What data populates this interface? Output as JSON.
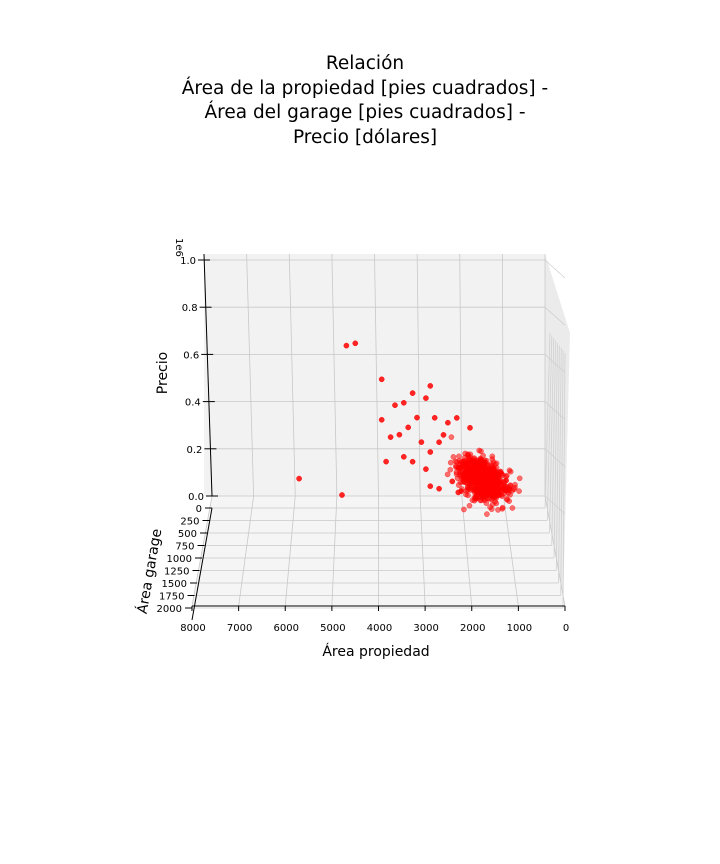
{
  "chart_data": {
    "type": "scatter",
    "title_lines": [
      "Relación",
      "Área de la propiedad [pies cuadrados] -",
      "Área del garage [pies cuadrados] -",
      "Precio [dólares]"
    ],
    "xlabel": "Área propiedad",
    "ylabel": "Área garage",
    "zlabel": "Precio",
    "z_offset_text": "1e6",
    "x_ticks": [
      "8000",
      "7000",
      "6000",
      "5000",
      "4000",
      "3000",
      "2000",
      "1000",
      "0"
    ],
    "y_ticks": [
      "0",
      "250",
      "500",
      "750",
      "1000",
      "1250",
      "1500",
      "1750",
      "2000"
    ],
    "z_ticks": [
      "0.0",
      "0.2",
      "0.4",
      "0.6",
      "0.8",
      "1.0"
    ],
    "xlim": [
      0,
      8000
    ],
    "ylim": [
      0,
      2000
    ],
    "zlim": [
      0,
      1000000
    ],
    "grid": true,
    "marker_color": "#ff0000",
    "points": [
      {
        "x": 4500,
        "y": 0,
        "z": 610000
      },
      {
        "x": 4300,
        "y": 0,
        "z": 620000
      },
      {
        "x": 3700,
        "y": 0,
        "z": 475000
      },
      {
        "x": 3000,
        "y": 0,
        "z": 420000
      },
      {
        "x": 2600,
        "y": 0,
        "z": 450000
      },
      {
        "x": 2700,
        "y": 0,
        "z": 400000
      },
      {
        "x": 3400,
        "y": 0,
        "z": 370000
      },
      {
        "x": 3200,
        "y": 0,
        "z": 380000
      },
      {
        "x": 3700,
        "y": 0,
        "z": 310000
      },
      {
        "x": 4600,
        "y": 0,
        "z": 4000
      },
      {
        "x": 5600,
        "y": 400,
        "z": 160000
      },
      {
        "x": 1000,
        "y": 600,
        "z": 200000
      },
      {
        "x": 2200,
        "y": 0,
        "z": 300000
      },
      {
        "x": 2900,
        "y": 0,
        "z": 320000
      },
      {
        "x": 3100,
        "y": 0,
        "z": 280000
      },
      {
        "x": 2500,
        "y": 0,
        "z": 320000
      },
      {
        "x": 2000,
        "y": 0,
        "z": 320000
      },
      {
        "x": 1700,
        "y": 0,
        "z": 280000
      },
      {
        "x": 3500,
        "y": 0,
        "z": 240000
      },
      {
        "x": 3300,
        "y": 0,
        "z": 250000
      },
      {
        "x": 3600,
        "y": 0,
        "z": 140000
      },
      {
        "x": 3200,
        "y": 0,
        "z": 160000
      },
      {
        "x": 2800,
        "y": 0,
        "z": 220000
      },
      {
        "x": 2400,
        "y": 0,
        "z": 220000
      },
      {
        "x": 2600,
        "y": 0,
        "z": 180000
      },
      {
        "x": 2300,
        "y": 0,
        "z": 250000
      },
      {
        "x": 3000,
        "y": 0,
        "z": 140000
      },
      {
        "x": 2700,
        "y": 0,
        "z": 110000
      },
      {
        "x": 2100,
        "y": 0,
        "z": 60000
      },
      {
        "x": 2600,
        "y": 0,
        "z": 40000
      },
      {
        "x": 1500,
        "y": 0,
        "z": 10000
      },
      {
        "x": 1900,
        "y": 0,
        "z": 20000
      },
      {
        "x": 1100,
        "y": 0,
        "z": 20000
      },
      {
        "x": 1400,
        "y": 0,
        "z": 5000
      },
      {
        "x": 1800,
        "y": 200,
        "z": 120000
      },
      {
        "x": 1200,
        "y": 150,
        "z": 100000
      },
      {
        "x": 2400,
        "y": 0,
        "z": 30000
      },
      {
        "x": 2000,
        "y": 200,
        "z": 60000
      },
      {
        "x": 1600,
        "y": 200,
        "z": 40000
      },
      {
        "x": 1300,
        "y": 120,
        "z": 50000
      }
    ]
  }
}
